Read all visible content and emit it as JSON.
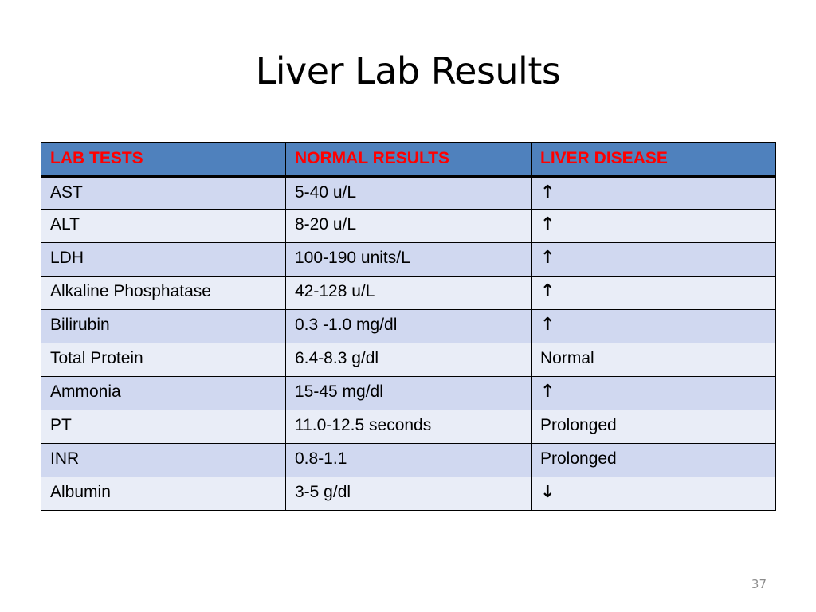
{
  "slide": {
    "title": "Liver Lab Results",
    "page_number": "37"
  },
  "table": {
    "headers": [
      "LAB TESTS",
      "NORMAL RESULTS",
      "LIVER DISEASE"
    ],
    "rows": [
      {
        "test": "AST",
        "normal": "5-40 u/L",
        "disease": "",
        "disease_icon": "arrow-up-icon"
      },
      {
        "test": "ALT",
        "normal": "8-20 u/L",
        "disease": "",
        "disease_icon": "arrow-up-icon"
      },
      {
        "test": "LDH",
        "normal": "100-190 units/L",
        "disease": "",
        "disease_icon": "arrow-up-icon"
      },
      {
        "test": "Alkaline Phosphatase",
        "normal": "42-128 u/L",
        "disease": "",
        "disease_icon": "arrow-up-icon"
      },
      {
        "test": "Bilirubin",
        "normal": "0.3 -1.0 mg/dl",
        "disease": "",
        "disease_icon": "arrow-up-icon"
      },
      {
        "test": "Total Protein",
        "normal": "6.4-8.3 g/dl",
        "disease": "Normal",
        "disease_icon": ""
      },
      {
        "test": "Ammonia",
        "normal": "15-45 mg/dl",
        "disease": "",
        "disease_icon": "arrow-up-icon"
      },
      {
        "test": "PT",
        "normal": "11.0-12.5 seconds",
        "disease": "Prolonged",
        "disease_icon": ""
      },
      {
        "test": "INR",
        "normal": "0.8-1.1",
        "disease": "Prolonged",
        "disease_icon": ""
      },
      {
        "test": "Albumin",
        "normal": "3-5 g/dl",
        "disease": "",
        "disease_icon": "arrow-down-icon"
      }
    ]
  },
  "colors": {
    "header_bg": "#4f81bd",
    "header_text": "#ff0000",
    "row_odd_bg": "#d0d8f0",
    "row_even_bg": "#e9edf7"
  }
}
